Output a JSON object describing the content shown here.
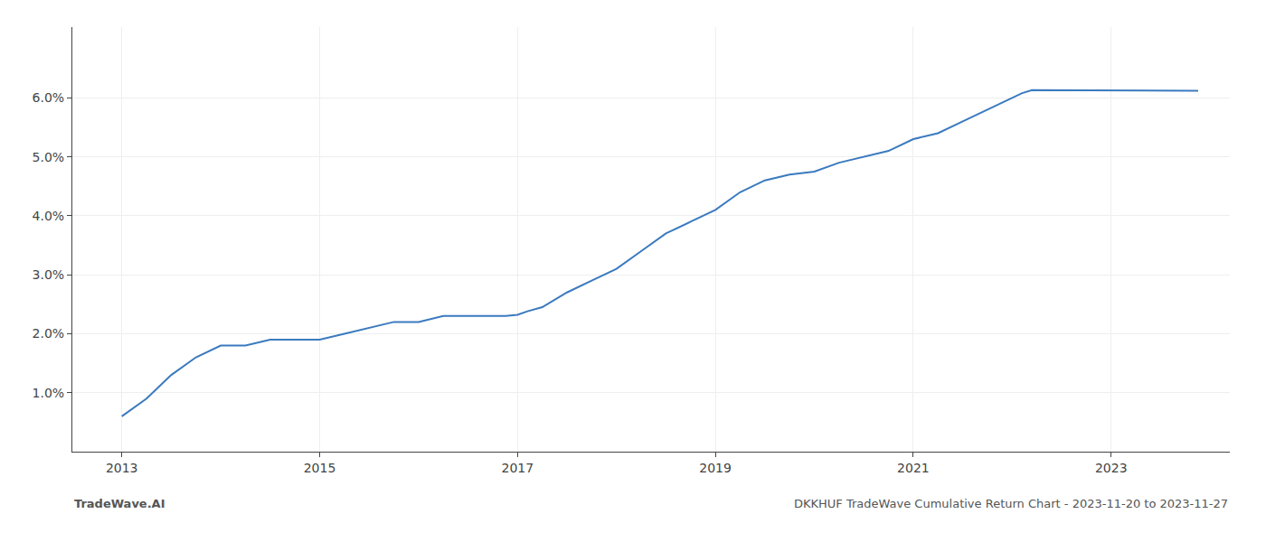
{
  "chart_data": {
    "type": "line",
    "title": "DKKHUF TradeWave Cumulative Return Chart - 2023-11-20 to 2023-11-27",
    "annotations": [
      "TradeWave.AI"
    ],
    "color": "#3a7abf",
    "x": [
      2013.0,
      2013.25,
      2013.5,
      2013.75,
      2014.0,
      2014.25,
      2014.5,
      2014.75,
      2015.0,
      2015.25,
      2015.5,
      2015.75,
      2016.0,
      2016.25,
      2016.5,
      2016.75,
      2016.88,
      2017.0,
      2017.05,
      2017.1,
      2017.25,
      2017.5,
      2017.75,
      2018.0,
      2018.25,
      2018.5,
      2018.75,
      2019.0,
      2019.25,
      2019.5,
      2019.75,
      2020.0,
      2020.25,
      2020.5,
      2020.75,
      2021.0,
      2021.25,
      2021.5,
      2021.75,
      2022.0,
      2022.1,
      2022.2,
      2022.5,
      2022.75,
      2023.0,
      2023.5,
      2023.88
    ],
    "values": [
      0.006,
      0.009,
      0.013,
      0.016,
      0.018,
      0.018,
      0.019,
      0.019,
      0.019,
      0.02,
      0.021,
      0.022,
      0.022,
      0.023,
      0.023,
      0.023,
      0.023,
      0.0232,
      0.0235,
      0.0238,
      0.0245,
      0.027,
      0.029,
      0.031,
      0.034,
      0.037,
      0.039,
      0.041,
      0.044,
      0.046,
      0.047,
      0.0475,
      0.049,
      0.05,
      0.051,
      0.053,
      0.054,
      0.056,
      0.058,
      0.06,
      0.0608,
      0.0613,
      0.0613,
      0.0613,
      0.0613,
      0.0612,
      0.0612
    ],
    "xlim": [
      2012.5,
      2024.2
    ],
    "ylim": [
      0.0,
      0.072
    ],
    "xticks": [
      2013,
      2015,
      2017,
      2019,
      2021,
      2023
    ],
    "yticks": [
      {
        "value": 0.01,
        "label": "1.0%"
      },
      {
        "value": 0.02,
        "label": "2.0%"
      },
      {
        "value": 0.03,
        "label": "3.0%"
      },
      {
        "value": 0.04,
        "label": "4.0%"
      },
      {
        "value": 0.05,
        "label": "5.0%"
      },
      {
        "value": 0.06,
        "label": "6.0%"
      }
    ],
    "grid": true
  }
}
